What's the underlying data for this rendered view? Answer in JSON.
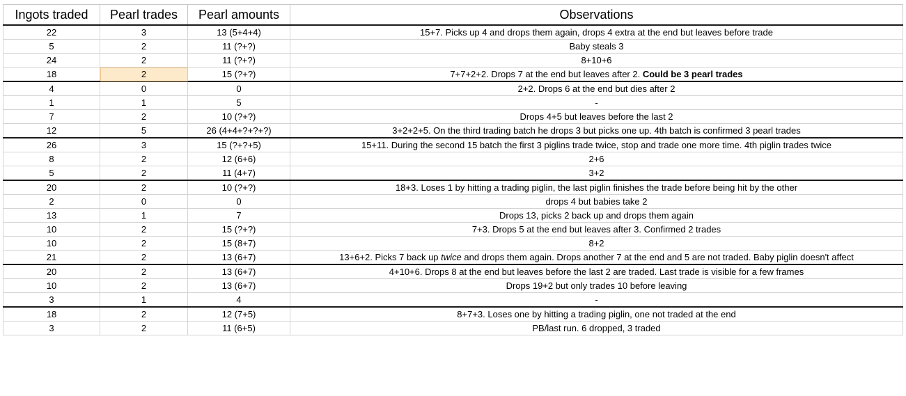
{
  "headers": [
    "Ingots traded",
    "Pearl trades",
    "Pearl amounts",
    "Observations"
  ],
  "rows": [
    {
      "ingots": "22",
      "trades": "3",
      "amounts": "13 (5+4+4)",
      "obs": [
        {
          "t": "15+7. Picks up 4 and drops them again, drops 4 extra at the end but leaves before trade"
        }
      ]
    },
    {
      "ingots": "5",
      "trades": "2",
      "amounts": "11 (?+?)",
      "obs": [
        {
          "t": "Baby steals 3"
        }
      ]
    },
    {
      "ingots": "24",
      "trades": "2",
      "amounts": "11 (?+?)",
      "obs": [
        {
          "t": "8+10+6"
        }
      ]
    },
    {
      "ingots": "18",
      "trades": "2",
      "amounts": "15 (?+?)",
      "highlight": true,
      "groupEnd": true,
      "obs": [
        {
          "t": "7+7+2+2. Drops 7 at the end but leaves after 2. "
        },
        {
          "t": "Could be 3 pearl trades",
          "b": true
        }
      ]
    },
    {
      "ingots": "4",
      "trades": "0",
      "amounts": "0",
      "obs": [
        {
          "t": "2+2. Drops 6 at the end but dies after 2"
        }
      ]
    },
    {
      "ingots": "1",
      "trades": "1",
      "amounts": "5",
      "obs": [
        {
          "t": "-"
        }
      ]
    },
    {
      "ingots": "7",
      "trades": "2",
      "amounts": "10 (?+?)",
      "obs": [
        {
          "t": "Drops 4+5 but leaves before the last 2"
        }
      ]
    },
    {
      "ingots": "12",
      "trades": "5",
      "amounts": "26 (4+4+?+?+?)",
      "groupEnd": true,
      "obs": [
        {
          "t": "3+2+2+5. On the third trading batch he drops 3 but picks one up. 4th batch is confirmed 3 pearl trades"
        }
      ]
    },
    {
      "ingots": "26",
      "trades": "3",
      "amounts": "15 (?+?+5)",
      "obs": [
        {
          "t": "15+11. During the second 15 batch the first 3 piglins trade twice, stop and trade one more time. 4th piglin trades twice"
        }
      ]
    },
    {
      "ingots": "8",
      "trades": "2",
      "amounts": "12 (6+6)",
      "obs": [
        {
          "t": "2+6"
        }
      ]
    },
    {
      "ingots": "5",
      "trades": "2",
      "amounts": "11 (4+7)",
      "groupEnd": true,
      "obs": [
        {
          "t": "3+2"
        }
      ]
    },
    {
      "ingots": "20",
      "trades": "2",
      "amounts": "10 (?+?)",
      "obs": [
        {
          "t": "18+3. Loses 1 by hitting a trading piglin, the last piglin finishes the trade before being hit by the other"
        }
      ]
    },
    {
      "ingots": "2",
      "trades": "0",
      "amounts": "0",
      "obs": [
        {
          "t": "drops 4 but babies take 2"
        }
      ]
    },
    {
      "ingots": "13",
      "trades": "1",
      "amounts": "7",
      "obs": [
        {
          "t": "Drops 13, picks 2 back up and drops them again"
        }
      ]
    },
    {
      "ingots": "10",
      "trades": "2",
      "amounts": "15 (?+?)",
      "obs": [
        {
          "t": "7+3. Drops 5 at the end but leaves after 3. Confirmed 2 trades"
        }
      ]
    },
    {
      "ingots": "10",
      "trades": "2",
      "amounts": "15 (8+7)",
      "obs": [
        {
          "t": "8+2"
        }
      ]
    },
    {
      "ingots": "21",
      "trades": "2",
      "amounts": "13 (6+7)",
      "groupEnd": true,
      "obs": [
        {
          "t": "13+6+2. Picks 7 back up "
        },
        {
          "t": "twice",
          "i": true
        },
        {
          "t": " and drops them again. Drops another 7 at the end and 5 are not traded. Baby piglin doesn't affect"
        }
      ]
    },
    {
      "ingots": "20",
      "trades": "2",
      "amounts": "13 (6+7)",
      "obs": [
        {
          "t": "4+10+6. Drops 8 at the end but leaves before the last 2 are traded. Last trade is visible for a few frames"
        }
      ]
    },
    {
      "ingots": "10",
      "trades": "2",
      "amounts": "13 (6+7)",
      "obs": [
        {
          "t": "Drops 19+2 but only trades 10 before leaving"
        }
      ]
    },
    {
      "ingots": "3",
      "trades": "1",
      "amounts": "4",
      "groupEnd": true,
      "obs": [
        {
          "t": "-"
        }
      ]
    },
    {
      "ingots": "18",
      "trades": "2",
      "amounts": "12 (7+5)",
      "obs": [
        {
          "t": "8+7+3. Loses one by hitting a trading piglin, one not traded at the end"
        }
      ]
    },
    {
      "ingots": "3",
      "trades": "2",
      "amounts": "11 (6+5)",
      "obs": [
        {
          "t": "PB/last run. 6 dropped, 3 traded"
        }
      ]
    }
  ]
}
